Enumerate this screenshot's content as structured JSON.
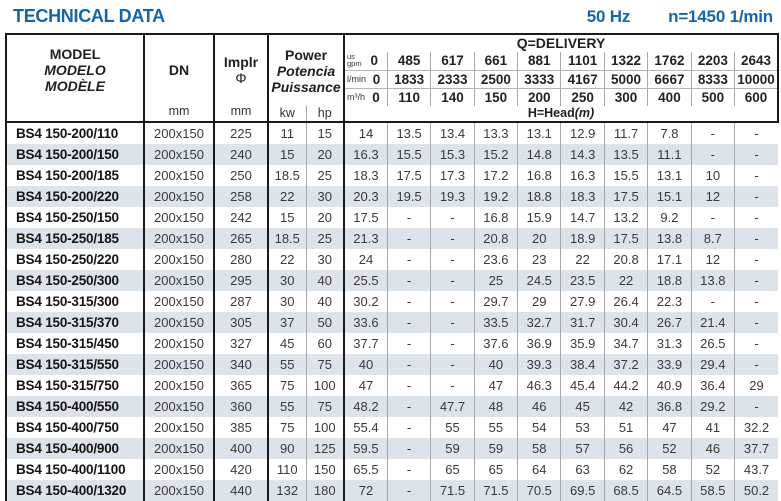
{
  "page": {
    "title": "TECHNICAL DATA",
    "frequency": "50 Hz",
    "speed": "n=1450 1/min"
  },
  "table": {
    "model_header": {
      "en": "MODEL",
      "es": "MODELO",
      "fr": "MODÈLE"
    },
    "dn": {
      "label": "DN",
      "unit": "mm"
    },
    "impeller": {
      "label": "Implr",
      "symbol": "Φ",
      "unit": "mm"
    },
    "power": {
      "en": "Power",
      "es": "Potencia",
      "fr": "Puissance",
      "kw": "kw",
      "hp": "hp"
    },
    "delivery": {
      "title": "Q=DELIVERY",
      "head_label": "H=Head",
      "head_unit": "(m)",
      "unit_rows": [
        {
          "unit_top": "us",
          "unit_label": "gpm",
          "values": [
            "0",
            "485",
            "617",
            "661",
            "881",
            "1101",
            "1322",
            "1762",
            "2203",
            "2643"
          ]
        },
        {
          "unit_top": "",
          "unit_label": "l/min",
          "values": [
            "0",
            "1833",
            "2333",
            "2500",
            "3333",
            "4167",
            "5000",
            "6667",
            "8333",
            "10000"
          ]
        },
        {
          "unit_top": "",
          "unit_label": "m³/h",
          "values": [
            "0",
            "110",
            "140",
            "150",
            "200",
            "250",
            "300",
            "400",
            "500",
            "600"
          ]
        }
      ]
    },
    "rows": [
      {
        "model": "BS4 150-200/110",
        "dn": "200x150",
        "impeller": "225",
        "kw": "11",
        "hp": "15",
        "head": [
          "14",
          "13.5",
          "13.4",
          "13.3",
          "13.1",
          "12.9",
          "11.7",
          "7.8",
          "-",
          "-"
        ]
      },
      {
        "model": "BS4 150-200/150",
        "dn": "200x150",
        "impeller": "240",
        "kw": "15",
        "hp": "20",
        "head": [
          "16.3",
          "15.5",
          "15.3",
          "15.2",
          "14.8",
          "14.3",
          "13.5",
          "11.1",
          "-",
          "-"
        ]
      },
      {
        "model": "BS4 150-200/185",
        "dn": "200x150",
        "impeller": "250",
        "kw": "18.5",
        "hp": "25",
        "head": [
          "18.3",
          "17.5",
          "17.3",
          "17.2",
          "16.8",
          "16.3",
          "15.5",
          "13.1",
          "10",
          "-"
        ]
      },
      {
        "model": "BS4 150-200/220",
        "dn": "200x150",
        "impeller": "258",
        "kw": "22",
        "hp": "30",
        "head": [
          "20.3",
          "19.5",
          "19.3",
          "19.2",
          "18.8",
          "18.3",
          "17.5",
          "15.1",
          "12",
          "-"
        ]
      },
      {
        "model": "BS4 150-250/150",
        "dn": "200x150",
        "impeller": "242",
        "kw": "15",
        "hp": "20",
        "head": [
          "17.5",
          "-",
          "-",
          "16.8",
          "15.9",
          "14.7",
          "13.2",
          "9.2",
          "-",
          "-"
        ]
      },
      {
        "model": "BS4 150-250/185",
        "dn": "200x150",
        "impeller": "265",
        "kw": "18.5",
        "hp": "25",
        "head": [
          "21.3",
          "-",
          "-",
          "20.8",
          "20",
          "18.9",
          "17.5",
          "13.8",
          "8.7",
          "-"
        ]
      },
      {
        "model": "BS4 150-250/220",
        "dn": "200x150",
        "impeller": "280",
        "kw": "22",
        "hp": "30",
        "head": [
          "24",
          "-",
          "-",
          "23.6",
          "23",
          "22",
          "20.8",
          "17.1",
          "12",
          "-"
        ]
      },
      {
        "model": "BS4 150-250/300",
        "dn": "200x150",
        "impeller": "295",
        "kw": "30",
        "hp": "40",
        "head": [
          "25.5",
          "-",
          "-",
          "25",
          "24.5",
          "23.5",
          "22",
          "18.8",
          "13.8",
          "-"
        ]
      },
      {
        "model": "BS4 150-315/300",
        "dn": "200x150",
        "impeller": "287",
        "kw": "30",
        "hp": "40",
        "head": [
          "30.2",
          "-",
          "-",
          "29.7",
          "29",
          "27.9",
          "26.4",
          "22.3",
          "-",
          "-"
        ]
      },
      {
        "model": "BS4 150-315/370",
        "dn": "200x150",
        "impeller": "305",
        "kw": "37",
        "hp": "50",
        "head": [
          "33.6",
          "-",
          "-",
          "33.5",
          "32.7",
          "31.7",
          "30.4",
          "26.7",
          "21.4",
          "-"
        ]
      },
      {
        "model": "BS4 150-315/450",
        "dn": "200x150",
        "impeller": "327",
        "kw": "45",
        "hp": "60",
        "head": [
          "37.7",
          "-",
          "-",
          "37.6",
          "36.9",
          "35.9",
          "34.7",
          "31.3",
          "26.5",
          "-"
        ]
      },
      {
        "model": "BS4 150-315/550",
        "dn": "200x150",
        "impeller": "340",
        "kw": "55",
        "hp": "75",
        "head": [
          "40",
          "-",
          "-",
          "40",
          "39.3",
          "38.4",
          "37.2",
          "33.9",
          "29.4",
          "-"
        ]
      },
      {
        "model": "BS4 150-315/750",
        "dn": "200x150",
        "impeller": "365",
        "kw": "75",
        "hp": "100",
        "head": [
          "47",
          "-",
          "-",
          "47",
          "46.3",
          "45.4",
          "44.2",
          "40.9",
          "36.4",
          "29"
        ]
      },
      {
        "model": "BS4 150-400/550",
        "dn": "200x150",
        "impeller": "360",
        "kw": "55",
        "hp": "75",
        "head": [
          "48.2",
          "-",
          "47.7",
          "48",
          "46",
          "45",
          "42",
          "36.8",
          "29.2",
          "-"
        ]
      },
      {
        "model": "BS4 150-400/750",
        "dn": "200x150",
        "impeller": "385",
        "kw": "75",
        "hp": "100",
        "head": [
          "55.4",
          "-",
          "55",
          "55",
          "54",
          "53",
          "51",
          "47",
          "41",
          "32.2"
        ]
      },
      {
        "model": "BS4 150-400/900",
        "dn": "200x150",
        "impeller": "400",
        "kw": "90",
        "hp": "125",
        "head": [
          "59.5",
          "-",
          "59",
          "59",
          "58",
          "57",
          "56",
          "52",
          "46",
          "37.7"
        ]
      },
      {
        "model": "BS4 150-400/1100",
        "dn": "200x150",
        "impeller": "420",
        "kw": "110",
        "hp": "150",
        "head": [
          "65.5",
          "-",
          "65",
          "65",
          "64",
          "63",
          "62",
          "58",
          "52",
          "43.7"
        ]
      },
      {
        "model": "BS4 150-400/1320",
        "dn": "200x150",
        "impeller": "440",
        "kw": "132",
        "hp": "180",
        "head": [
          "72",
          "-",
          "71.5",
          "71.5",
          "70.5",
          "69.5",
          "68.5",
          "64.5",
          "58.5",
          "50.2"
        ]
      }
    ]
  },
  "colors": {
    "accent_blue": "#1565ad",
    "shaded_row": "#dce3eb",
    "rule_black": "#1a1a1a",
    "rule_gray": "#a8a8a8"
  }
}
